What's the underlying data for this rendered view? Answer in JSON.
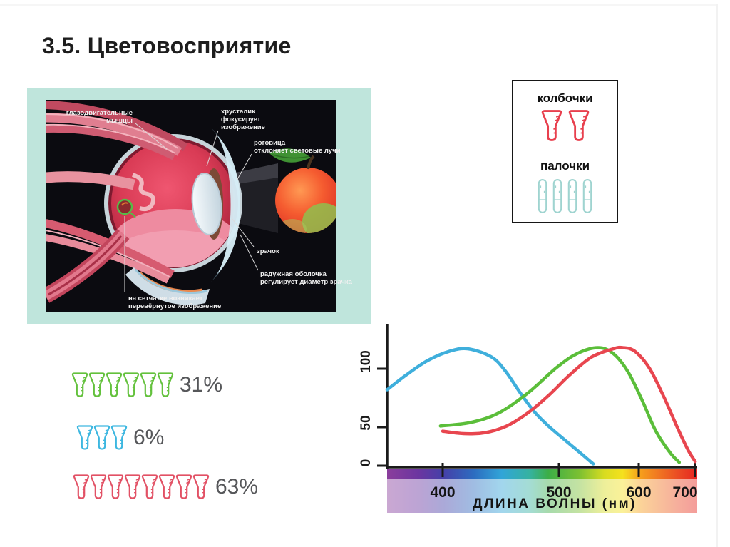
{
  "page": {
    "title": "3.5. Цветовосприятие"
  },
  "eye_figure": {
    "labels": {
      "muscles": [
        "глазодвигательные",
        "мышцы"
      ],
      "lens": [
        "хрусталик",
        "фокусирует",
        "изображение"
      ],
      "cornea": [
        "роговица",
        "отклоняет световые лучи"
      ],
      "pupil": [
        "зрачок"
      ],
      "iris": [
        "радужная оболочка",
        "регулирует диаметр зрачка"
      ],
      "retina": [
        "на сетчатке возникает",
        "перевёрнутое изображение"
      ]
    },
    "frame_color": "#bfe5dc",
    "background_color": "#0b0b10"
  },
  "legend": {
    "cones_label": "колбочки",
    "rods_label": "палочки",
    "cones": {
      "type": "cone",
      "count": 2,
      "color": "#e8404e"
    },
    "rods": {
      "type": "rod",
      "count": 4,
      "color": "#9fd4d0"
    }
  },
  "cone_rows": [
    {
      "type": "cone",
      "count": 6,
      "color": "#63c13c",
      "label": "31%"
    },
    {
      "type": "cone",
      "count": 3,
      "color": "#3db7e0",
      "label": "6%"
    },
    {
      "type": "cone",
      "count": 8,
      "color": "#e25165",
      "label": "63%"
    }
  ],
  "chart_data": {
    "type": "line",
    "xlabel": "ДЛИНА ВОЛНЫ (нм)",
    "x_ticks": [
      "400",
      "500",
      "600",
      "700"
    ],
    "y_ticks": [
      "0",
      "50",
      "100"
    ],
    "x_range": [
      352,
      700
    ],
    "y_range": [
      0,
      125
    ],
    "grid": false,
    "legend_position": "none",
    "series": [
      {
        "name": "blue-cones",
        "color": "#3fafdc",
        "points": [
          [
            352,
            82
          ],
          [
            369,
            95
          ],
          [
            387,
            107
          ],
          [
            406,
            115
          ],
          [
            422,
            117
          ],
          [
            442,
            110
          ],
          [
            454,
            98
          ],
          [
            467,
            79
          ],
          [
            479,
            63
          ],
          [
            491,
            51
          ],
          [
            505,
            36
          ],
          [
            523,
            21
          ],
          [
            543,
            4
          ]
        ]
      },
      {
        "name": "green-cones",
        "color": "#5bbe3a",
        "points": [
          [
            398,
            51
          ],
          [
            424,
            54
          ],
          [
            448,
            62
          ],
          [
            473,
            79
          ],
          [
            498,
            101
          ],
          [
            523,
            113
          ],
          [
            549,
            118
          ],
          [
            568,
            113
          ],
          [
            586,
            98
          ],
          [
            605,
            74
          ],
          [
            630,
            45
          ],
          [
            655,
            18
          ],
          [
            671,
            6
          ]
        ]
      },
      {
        "name": "red-cones",
        "color": "#e8464f",
        "points": [
          [
            400,
            45
          ],
          [
            418,
            42
          ],
          [
            436,
            43
          ],
          [
            455,
            51
          ],
          [
            473,
            62
          ],
          [
            491,
            77
          ],
          [
            514,
            95
          ],
          [
            541,
            110
          ],
          [
            568,
            117
          ],
          [
            580,
            118
          ],
          [
            595,
            115
          ],
          [
            618,
            101
          ],
          [
            643,
            77
          ],
          [
            668,
            49
          ],
          [
            686,
            22
          ],
          [
            699,
            7
          ]
        ]
      }
    ],
    "spectrum_gradient": [
      [
        0,
        "#8a3e9c"
      ],
      [
        0.1,
        "#6c35a0"
      ],
      [
        0.18,
        "#4640a8"
      ],
      [
        0.28,
        "#2d6cc0"
      ],
      [
        0.37,
        "#31a5d8"
      ],
      [
        0.46,
        "#35b2a0"
      ],
      [
        0.52,
        "#3cae47"
      ],
      [
        0.62,
        "#7cc032"
      ],
      [
        0.7,
        "#d8dc20"
      ],
      [
        0.76,
        "#f5e11d"
      ],
      [
        0.815,
        "#f6a01c"
      ],
      [
        0.88,
        "#f07322"
      ],
      [
        0.94,
        "#ea4a24"
      ],
      [
        1,
        "#e62521"
      ]
    ]
  }
}
